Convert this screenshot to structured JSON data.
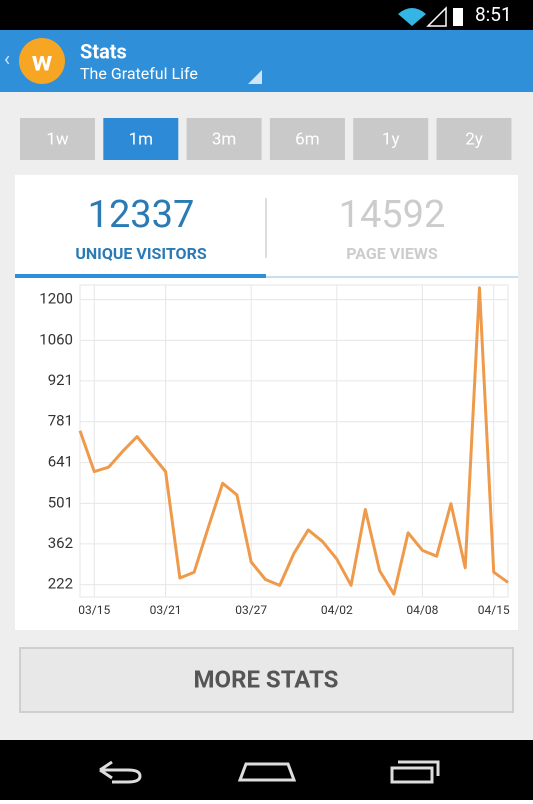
{
  "status_bar": {
    "time": "8:51"
  },
  "action_bar": {
    "title": "Stats",
    "subtitle": "The Grateful Life"
  },
  "periods": {
    "items": [
      "1w",
      "1m",
      "3m",
      "6m",
      "1y",
      "2y"
    ],
    "selected": "1m"
  },
  "tabs": [
    {
      "value": "12337",
      "label": "UNIQUE VISITORS"
    },
    {
      "value": "14592",
      "label": "PAGE VIEWS"
    }
  ],
  "chart_data": {
    "type": "line",
    "categories": [
      null,
      "03/15",
      null,
      null,
      null,
      null,
      "03/21",
      null,
      null,
      null,
      null,
      null,
      "03/27",
      null,
      null,
      null,
      null,
      null,
      "04/02",
      null,
      null,
      null,
      null,
      null,
      "04/08",
      null,
      null,
      null,
      null,
      "04/15",
      null
    ],
    "series": [
      {
        "name": "Unique visitors",
        "color": "#ef9a4b",
        "values": [
          750,
          610,
          625,
          680,
          730,
          670,
          610,
          245,
          265,
          420,
          570,
          530,
          300,
          240,
          220,
          330,
          410,
          370,
          310,
          220,
          480,
          270,
          190,
          400,
          340,
          320,
          500,
          280,
          1240,
          265,
          230
        ]
      }
    ],
    "ylim": [
      180,
      1250
    ],
    "yticks": [
      222,
      362,
      501,
      641,
      781,
      921,
      1060,
      1200
    ],
    "grid": true
  },
  "button": {
    "label": "MORE STATS"
  }
}
